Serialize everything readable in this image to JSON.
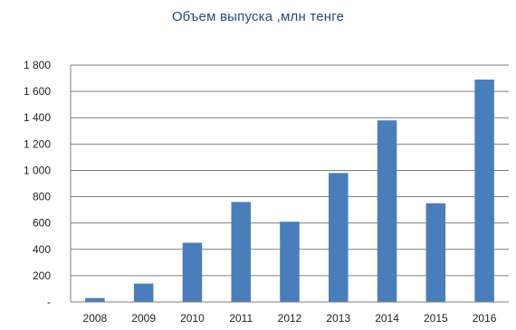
{
  "chart_data": {
    "type": "bar",
    "title": "Объем выпуска ,млн тенге",
    "xlabel": "",
    "ylabel": "",
    "categories": [
      "2008",
      "2009",
      "2010",
      "2011",
      "2012",
      "2013",
      "2014",
      "2015",
      "2016"
    ],
    "values": [
      30,
      140,
      450,
      760,
      610,
      980,
      1380,
      750,
      1690
    ],
    "ylim": [
      0,
      1800
    ],
    "yticks": [
      {
        "value": 0,
        "label": "-"
      },
      {
        "value": 200,
        "label": "200"
      },
      {
        "value": 400,
        "label": "400"
      },
      {
        "value": 600,
        "label": "600"
      },
      {
        "value": 800,
        "label": "800"
      },
      {
        "value": 1000,
        "label": "1 000"
      },
      {
        "value": 1200,
        "label": "1 200"
      },
      {
        "value": 1400,
        "label": "1 400"
      },
      {
        "value": 1600,
        "label": "1 600"
      },
      {
        "value": 1800,
        "label": "1 800"
      }
    ],
    "grid": true,
    "colors": {
      "bar": "#4a7ebb",
      "grid": "#7f7f7f",
      "axis": "#7f7f7f",
      "title": "#1f4e79"
    }
  }
}
